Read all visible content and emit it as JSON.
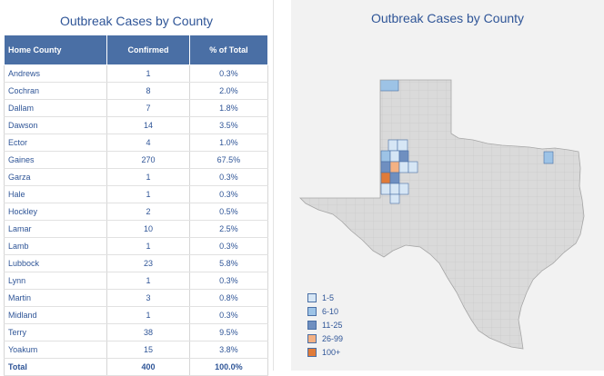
{
  "panel": {
    "title": "Outbreak Cases by County"
  },
  "table": {
    "headers": {
      "county": "Home County",
      "confirmed": "Confirmed",
      "pct": "% of Total"
    },
    "rows": [
      {
        "county": "Andrews",
        "confirmed": "1",
        "pct": "0.3%"
      },
      {
        "county": "Cochran",
        "confirmed": "8",
        "pct": "2.0%"
      },
      {
        "county": "Dallam",
        "confirmed": "7",
        "pct": "1.8%"
      },
      {
        "county": "Dawson",
        "confirmed": "14",
        "pct": "3.5%"
      },
      {
        "county": "Ector",
        "confirmed": "4",
        "pct": "1.0%"
      },
      {
        "county": "Gaines",
        "confirmed": "270",
        "pct": "67.5%"
      },
      {
        "county": "Garza",
        "confirmed": "1",
        "pct": "0.3%"
      },
      {
        "county": "Hale",
        "confirmed": "1",
        "pct": "0.3%"
      },
      {
        "county": "Hockley",
        "confirmed": "2",
        "pct": "0.5%"
      },
      {
        "county": "Lamar",
        "confirmed": "10",
        "pct": "2.5%"
      },
      {
        "county": "Lamb",
        "confirmed": "1",
        "pct": "0.3%"
      },
      {
        "county": "Lubbock",
        "confirmed": "23",
        "pct": "5.8%"
      },
      {
        "county": "Lynn",
        "confirmed": "1",
        "pct": "0.3%"
      },
      {
        "county": "Martin",
        "confirmed": "3",
        "pct": "0.8%"
      },
      {
        "county": "Midland",
        "confirmed": "1",
        "pct": "0.3%"
      },
      {
        "county": "Terry",
        "confirmed": "38",
        "pct": "9.5%"
      },
      {
        "county": "Yoakum",
        "confirmed": "15",
        "pct": "3.8%"
      }
    ],
    "total": {
      "county": "Total",
      "confirmed": "400",
      "pct": "100.0%"
    }
  },
  "map": {
    "title": "Outbreak Cases by County",
    "legend": [
      {
        "label": "1-5",
        "color": "#d6e6f5"
      },
      {
        "label": "6-10",
        "color": "#9dc3e6"
      },
      {
        "label": "11-25",
        "color": "#6f8fc0"
      },
      {
        "label": "26-99",
        "color": "#f4b183"
      },
      {
        "label": "100+",
        "color": "#e07b39"
      }
    ],
    "base_color": "#dadada",
    "border_color": "#bfbfbf"
  }
}
